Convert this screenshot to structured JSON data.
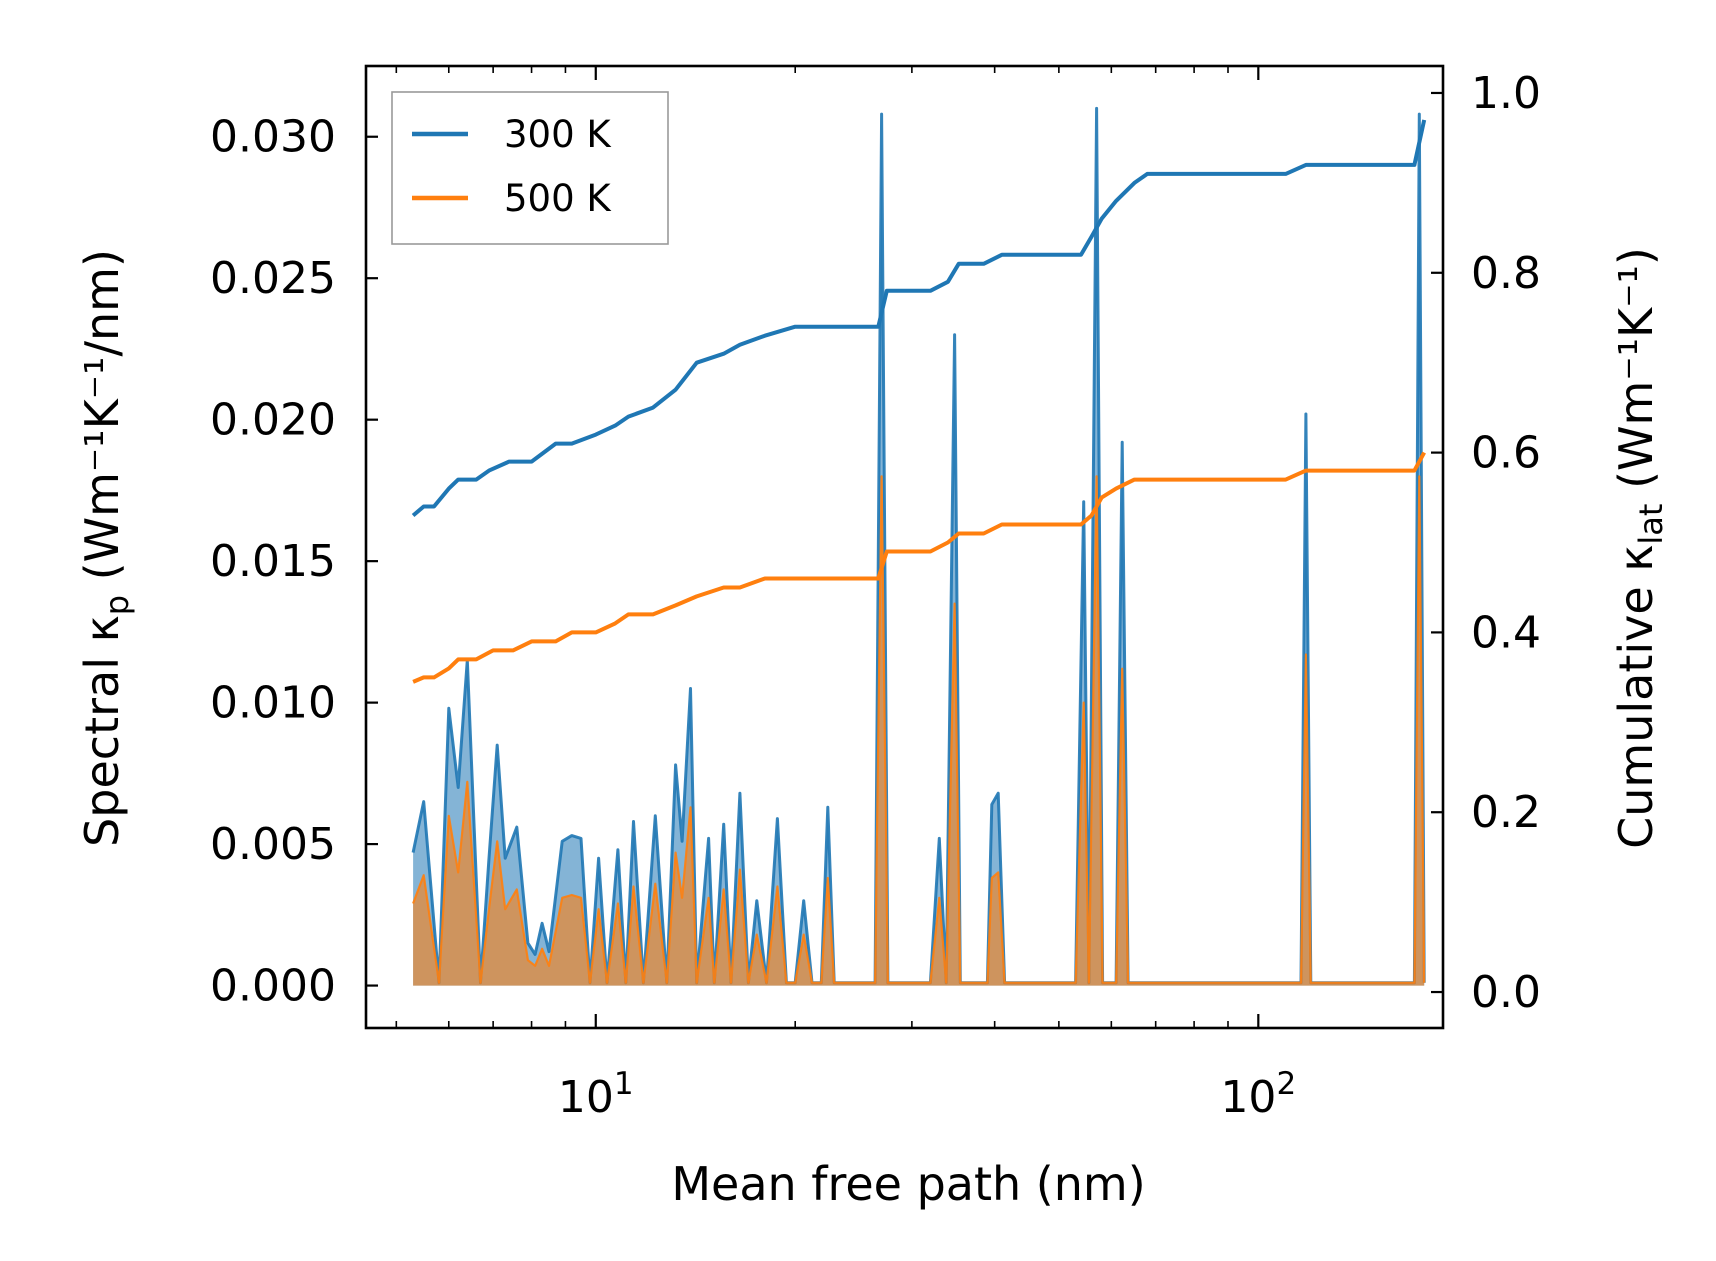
{
  "chart_data": {
    "type": "line",
    "title": "",
    "xlabel": "Mean free path (nm)",
    "ylabel_left": {
      "base": "Spectral κ",
      "sub": "p",
      "unit": "(Wm⁻¹K⁻¹/nm)"
    },
    "ylabel_right": {
      "base": "Cumulative κ",
      "sub": "lat",
      "unit": "(Wm⁻¹K⁻¹)"
    },
    "xscale": "log",
    "xlim": [
      4.5,
      190
    ],
    "ylim_left": [
      -0.0015,
      0.0325
    ],
    "ylim_right": [
      -0.04,
      1.03
    ],
    "x_ticks": [
      {
        "value": 10,
        "base": "10",
        "exp": "1"
      },
      {
        "value": 100,
        "base": "10",
        "exp": "2"
      }
    ],
    "y_ticks_left": [
      "0.000",
      "0.005",
      "0.010",
      "0.015",
      "0.020",
      "0.025",
      "0.030"
    ],
    "y_ticks_right": [
      "0.0",
      "0.2",
      "0.4",
      "0.6",
      "0.8",
      "1.0"
    ],
    "legend": {
      "placement": "top-left",
      "entries": [
        {
          "label": "300 K",
          "color": "#1f77b4"
        },
        {
          "label": "500 K",
          "color": "#ff7f0e"
        }
      ]
    },
    "series": [
      {
        "name": "300 K",
        "color": "#1f77b4",
        "cumulative_right_axis": [
          [
            5.3,
            0.53
          ],
          [
            5.5,
            0.54
          ],
          [
            5.7,
            0.54
          ],
          [
            6.0,
            0.56
          ],
          [
            6.2,
            0.57
          ],
          [
            6.6,
            0.57
          ],
          [
            6.9,
            0.58
          ],
          [
            7.4,
            0.59
          ],
          [
            8.0,
            0.59
          ],
          [
            8.7,
            0.61
          ],
          [
            9.2,
            0.61
          ],
          [
            10.0,
            0.62
          ],
          [
            10.7,
            0.63
          ],
          [
            11.2,
            0.64
          ],
          [
            12.2,
            0.65
          ],
          [
            13.2,
            0.67
          ],
          [
            14.2,
            0.7
          ],
          [
            15.6,
            0.71
          ],
          [
            16.5,
            0.72
          ],
          [
            18.0,
            0.73
          ],
          [
            20.0,
            0.74
          ],
          [
            22.0,
            0.74
          ],
          [
            26.7,
            0.74
          ],
          [
            27.5,
            0.78
          ],
          [
            32.0,
            0.78
          ],
          [
            34.0,
            0.79
          ],
          [
            35.3,
            0.81
          ],
          [
            38.5,
            0.81
          ],
          [
            41.0,
            0.82
          ],
          [
            54.0,
            0.82
          ],
          [
            56.0,
            0.84
          ],
          [
            58.0,
            0.86
          ],
          [
            61.0,
            0.88
          ],
          [
            65.0,
            0.9
          ],
          [
            68.0,
            0.91
          ],
          [
            110.0,
            0.91
          ],
          [
            118.0,
            0.92
          ],
          [
            172.0,
            0.92
          ],
          [
            178.0,
            0.97
          ]
        ],
        "spectral_left_axis": [
          [
            5.3,
            0.0047
          ],
          [
            5.5,
            0.0065
          ],
          [
            5.8,
            0.0001
          ],
          [
            6.0,
            0.0098
          ],
          [
            6.2,
            0.007
          ],
          [
            6.4,
            0.0115
          ],
          [
            6.7,
            0.0001
          ],
          [
            6.9,
            0.0045
          ],
          [
            7.1,
            0.0085
          ],
          [
            7.3,
            0.0045
          ],
          [
            7.6,
            0.0056
          ],
          [
            7.9,
            0.0015
          ],
          [
            8.1,
            0.0011
          ],
          [
            8.3,
            0.0022
          ],
          [
            8.5,
            0.0012
          ],
          [
            8.9,
            0.0051
          ],
          [
            9.2,
            0.0053
          ],
          [
            9.5,
            0.0052
          ],
          [
            9.8,
            0.0001
          ],
          [
            10.1,
            0.0045
          ],
          [
            10.4,
            0.0001
          ],
          [
            10.8,
            0.0048
          ],
          [
            11.1,
            0.0001
          ],
          [
            11.4,
            0.0058
          ],
          [
            11.8,
            0.0001
          ],
          [
            12.3,
            0.006
          ],
          [
            12.8,
            0.0001
          ],
          [
            13.2,
            0.0078
          ],
          [
            13.5,
            0.0051
          ],
          [
            13.9,
            0.0105
          ],
          [
            14.2,
            0.0001
          ],
          [
            14.8,
            0.0052
          ],
          [
            15.1,
            0.0001
          ],
          [
            15.6,
            0.0057
          ],
          [
            16.0,
            0.0001
          ],
          [
            16.5,
            0.0068
          ],
          [
            17.0,
            0.0001
          ],
          [
            17.5,
            0.003
          ],
          [
            18.1,
            0.0001
          ],
          [
            18.8,
            0.0059
          ],
          [
            19.4,
            0.0001
          ],
          [
            20.0,
            0.0001
          ],
          [
            20.6,
            0.003
          ],
          [
            21.2,
            0.0001
          ],
          [
            21.9,
            0.0001
          ],
          [
            22.4,
            0.0063
          ],
          [
            22.9,
            0.0001
          ],
          [
            26.4,
            0.0001
          ],
          [
            27.0,
            0.0308
          ],
          [
            27.6,
            0.0001
          ],
          [
            32.0,
            0.0001
          ],
          [
            33.0,
            0.0052
          ],
          [
            33.8,
            0.0001
          ],
          [
            34.8,
            0.023
          ],
          [
            35.5,
            0.0001
          ],
          [
            39.0,
            0.0001
          ],
          [
            39.6,
            0.0064
          ],
          [
            40.5,
            0.0068
          ],
          [
            41.4,
            0.0001
          ],
          [
            53.0,
            0.0001
          ],
          [
            54.5,
            0.0171
          ],
          [
            55.5,
            0.0001
          ],
          [
            57.0,
            0.031
          ],
          [
            58.2,
            0.0001
          ],
          [
            61.0,
            0.0001
          ],
          [
            62.3,
            0.0192
          ],
          [
            63.6,
            0.0001
          ],
          [
            116.0,
            0.0001
          ],
          [
            118.0,
            0.0202
          ],
          [
            120.0,
            0.0001
          ],
          [
            172.0,
            0.0001
          ],
          [
            175.0,
            0.0308
          ],
          [
            178.0,
            0.0001
          ]
        ]
      },
      {
        "name": "500 K",
        "color": "#ff7f0e",
        "cumulative_right_axis": [
          [
            5.3,
            0.345
          ],
          [
            5.5,
            0.35
          ],
          [
            5.7,
            0.35
          ],
          [
            6.0,
            0.36
          ],
          [
            6.2,
            0.37
          ],
          [
            6.6,
            0.37
          ],
          [
            7.0,
            0.38
          ],
          [
            7.5,
            0.38
          ],
          [
            8.0,
            0.39
          ],
          [
            8.7,
            0.39
          ],
          [
            9.2,
            0.4
          ],
          [
            10.0,
            0.4
          ],
          [
            10.7,
            0.41
          ],
          [
            11.2,
            0.42
          ],
          [
            12.2,
            0.42
          ],
          [
            13.2,
            0.43
          ],
          [
            14.2,
            0.44
          ],
          [
            15.6,
            0.45
          ],
          [
            16.5,
            0.45
          ],
          [
            18.0,
            0.46
          ],
          [
            20.0,
            0.46
          ],
          [
            22.0,
            0.46
          ],
          [
            26.7,
            0.46
          ],
          [
            27.5,
            0.49
          ],
          [
            32.0,
            0.49
          ],
          [
            34.0,
            0.5
          ],
          [
            35.3,
            0.51
          ],
          [
            38.5,
            0.51
          ],
          [
            41.0,
            0.52
          ],
          [
            54.0,
            0.52
          ],
          [
            56.0,
            0.53
          ],
          [
            58.0,
            0.55
          ],
          [
            61.0,
            0.56
          ],
          [
            65.0,
            0.57
          ],
          [
            68.0,
            0.57
          ],
          [
            110.0,
            0.57
          ],
          [
            118.0,
            0.58
          ],
          [
            172.0,
            0.58
          ],
          [
            178.0,
            0.6
          ]
        ],
        "spectral_left_axis": [
          [
            5.3,
            0.0029
          ],
          [
            5.5,
            0.0039
          ],
          [
            5.8,
            0.0001
          ],
          [
            6.0,
            0.006
          ],
          [
            6.2,
            0.004
          ],
          [
            6.4,
            0.0072
          ],
          [
            6.7,
            0.0001
          ],
          [
            6.9,
            0.0027
          ],
          [
            7.1,
            0.0051
          ],
          [
            7.3,
            0.0027
          ],
          [
            7.6,
            0.0034
          ],
          [
            7.9,
            0.0009
          ],
          [
            8.1,
            0.0007
          ],
          [
            8.3,
            0.0013
          ],
          [
            8.5,
            0.0007
          ],
          [
            8.9,
            0.0031
          ],
          [
            9.2,
            0.0032
          ],
          [
            9.5,
            0.0031
          ],
          [
            9.8,
            0.0001
          ],
          [
            10.1,
            0.0027
          ],
          [
            10.4,
            0.0001
          ],
          [
            10.8,
            0.0029
          ],
          [
            11.1,
            0.0001
          ],
          [
            11.4,
            0.0035
          ],
          [
            11.8,
            0.0001
          ],
          [
            12.3,
            0.0036
          ],
          [
            12.8,
            0.0001
          ],
          [
            13.2,
            0.0047
          ],
          [
            13.5,
            0.0031
          ],
          [
            13.9,
            0.0063
          ],
          [
            14.2,
            0.0001
          ],
          [
            14.8,
            0.0031
          ],
          [
            15.1,
            0.0001
          ],
          [
            15.6,
            0.0034
          ],
          [
            16.0,
            0.0001
          ],
          [
            16.5,
            0.0041
          ],
          [
            17.0,
            0.0001
          ],
          [
            17.5,
            0.0018
          ],
          [
            18.1,
            0.0001
          ],
          [
            18.8,
            0.0035
          ],
          [
            19.4,
            0.0001
          ],
          [
            20.0,
            0.0001
          ],
          [
            20.6,
            0.0018
          ],
          [
            21.2,
            0.0001
          ],
          [
            21.9,
            0.0001
          ],
          [
            22.4,
            0.0038
          ],
          [
            22.9,
            0.0001
          ],
          [
            26.4,
            0.0001
          ],
          [
            27.0,
            0.018
          ],
          [
            27.6,
            0.0001
          ],
          [
            32.0,
            0.0001
          ],
          [
            33.0,
            0.0031
          ],
          [
            33.8,
            0.0001
          ],
          [
            34.8,
            0.0135
          ],
          [
            35.5,
            0.0001
          ],
          [
            39.0,
            0.0001
          ],
          [
            39.6,
            0.0038
          ],
          [
            40.5,
            0.004
          ],
          [
            41.4,
            0.0001
          ],
          [
            53.0,
            0.0001
          ],
          [
            54.5,
            0.01
          ],
          [
            55.5,
            0.0001
          ],
          [
            57.0,
            0.018
          ],
          [
            58.2,
            0.0001
          ],
          [
            61.0,
            0.0001
          ],
          [
            62.3,
            0.0112
          ],
          [
            63.6,
            0.0001
          ],
          [
            116.0,
            0.0001
          ],
          [
            118.0,
            0.0117
          ],
          [
            120.0,
            0.0001
          ],
          [
            172.0,
            0.0001
          ],
          [
            175.0,
            0.018
          ],
          [
            178.0,
            0.0001
          ]
        ]
      }
    ]
  }
}
